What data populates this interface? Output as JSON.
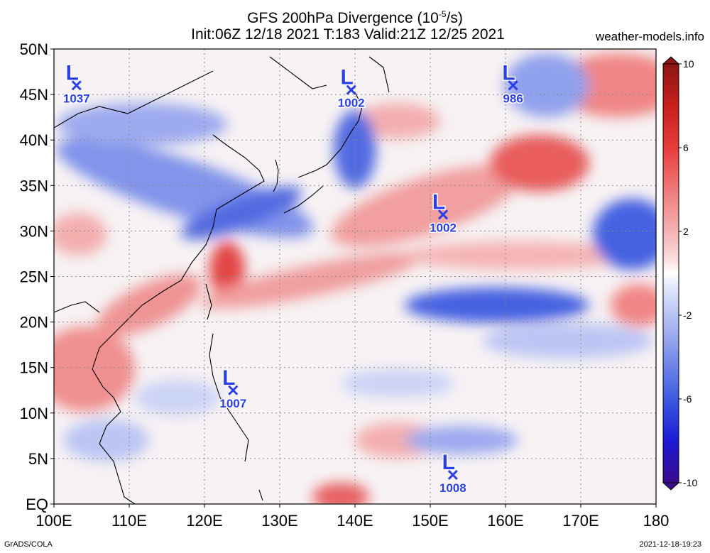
{
  "title": {
    "line1": "GFS 200hPa Divergence (10",
    "line1_sup": "-5",
    "line1_tail": "/s)",
    "line2": "Init:06Z 12/18 2021 T:183 Valid:21Z 12/25 2021"
  },
  "site": "weather-models.info",
  "credit": "GrADS/COLA",
  "timestamp": "2021-12-18-19:23",
  "map": {
    "lon_labels": [
      "100E",
      "110E",
      "120E",
      "130E",
      "140E",
      "150E",
      "160E",
      "170E",
      "180"
    ],
    "lat_labels": [
      "EQ",
      "5N",
      "10N",
      "15N",
      "20N",
      "25N",
      "30N",
      "35N",
      "40N",
      "45N",
      "50N"
    ],
    "lon_range": [
      100,
      180
    ],
    "lat_range": [
      0,
      50
    ]
  },
  "colorbar": {
    "labels": [
      "10",
      "6",
      "2",
      "-2",
      "-6",
      "-10"
    ],
    "range": [
      -10,
      10
    ],
    "colors": [
      "#3a0a8a",
      "#1b1bd6",
      "#3d5ae0",
      "#7b8fea",
      "#b8c3f3",
      "#e3e8fb",
      "#ffffff",
      "#fbe0e0",
      "#f5b2b2",
      "#ef7a7a",
      "#e83c3c",
      "#c81e1e",
      "#8c1414"
    ]
  },
  "pressure_centers": [
    {
      "symbol": "L",
      "value": "1037",
      "lon": 103.0,
      "lat": 46.0
    },
    {
      "symbol": "L",
      "value": "1002",
      "lon": 139.5,
      "lat": 45.5
    },
    {
      "symbol": "L",
      "value": "986",
      "lon": 161.0,
      "lat": 46.0
    },
    {
      "symbol": "L",
      "value": "1002",
      "lon": 151.7,
      "lat": 31.8
    },
    {
      "symbol": "L",
      "value": "1007",
      "lon": 123.8,
      "lat": 12.5
    },
    {
      "symbol": "L",
      "value": "1008",
      "lon": 153.0,
      "lat": 3.2
    }
  ],
  "marker_color": "#2a3fe6"
}
